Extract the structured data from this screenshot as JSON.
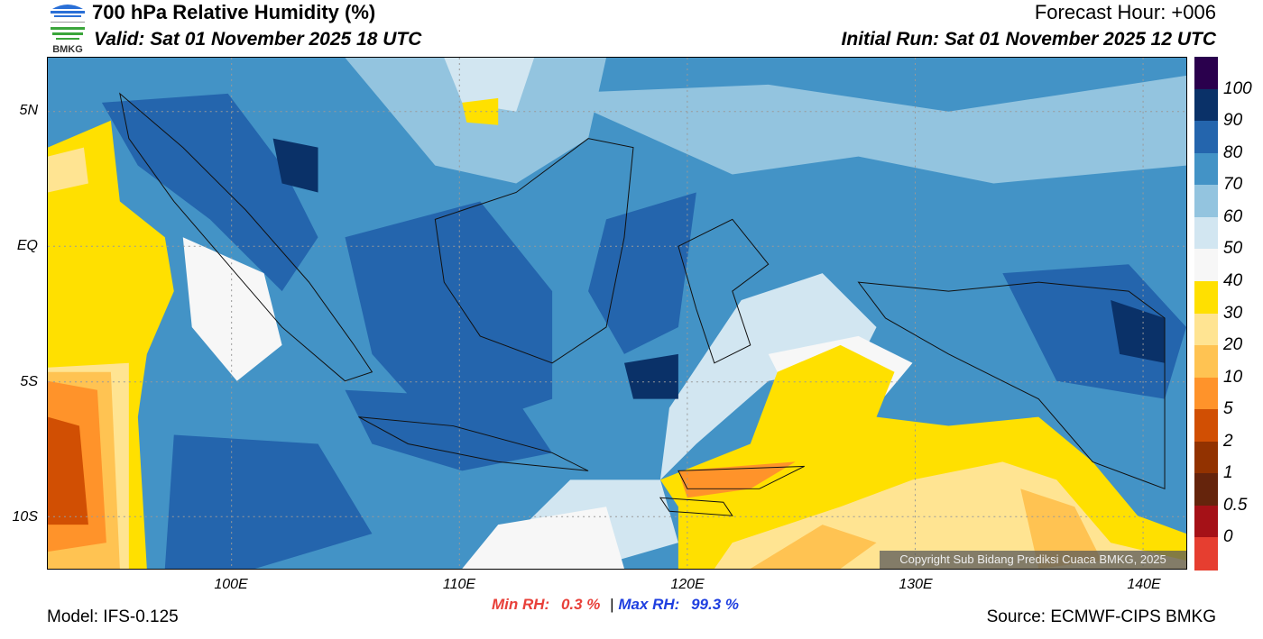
{
  "header": {
    "title": "700 hPa Relative Humidity (%)",
    "valid": "Valid: Sat 01 November 2025 18 UTC",
    "forecast_hour": "Forecast Hour: +006",
    "initial_run": "Initial Run: Sat 01 November 2025 12 UTC",
    "logo_text": "BMKG"
  },
  "map": {
    "lat_labels": [
      "5N",
      "EQ",
      "5S",
      "10S"
    ],
    "lon_labels": [
      "100E",
      "110E",
      "120E",
      "130E",
      "140E"
    ],
    "copyright": "Copyright Sub Bidang Prediksi Cuaca BMKG, 2025"
  },
  "colorbar": {
    "labels": [
      "100",
      "90",
      "80",
      "70",
      "60",
      "50",
      "40",
      "30",
      "20",
      "10",
      "5",
      "2",
      "1",
      "0.5",
      "0"
    ],
    "colors": [
      "#2a004d",
      "#0a3168",
      "#2465ad",
      "#4393c6",
      "#93c4df",
      "#d2e6f1",
      "#f7f7f7",
      "#ffe000",
      "#ffe492",
      "#ffc352",
      "#ff932a",
      "#d14f03",
      "#923200",
      "#65240c",
      "#a51117",
      "#e63e30"
    ]
  },
  "footer": {
    "min_label": "Min RH:",
    "min_value": "0.3 %",
    "separator": "|",
    "max_label": "Max RH:",
    "max_value": "99.3 %",
    "model": "Model: IFS-0.125",
    "source": "Source: ECMWF-CIPS BMKG"
  }
}
